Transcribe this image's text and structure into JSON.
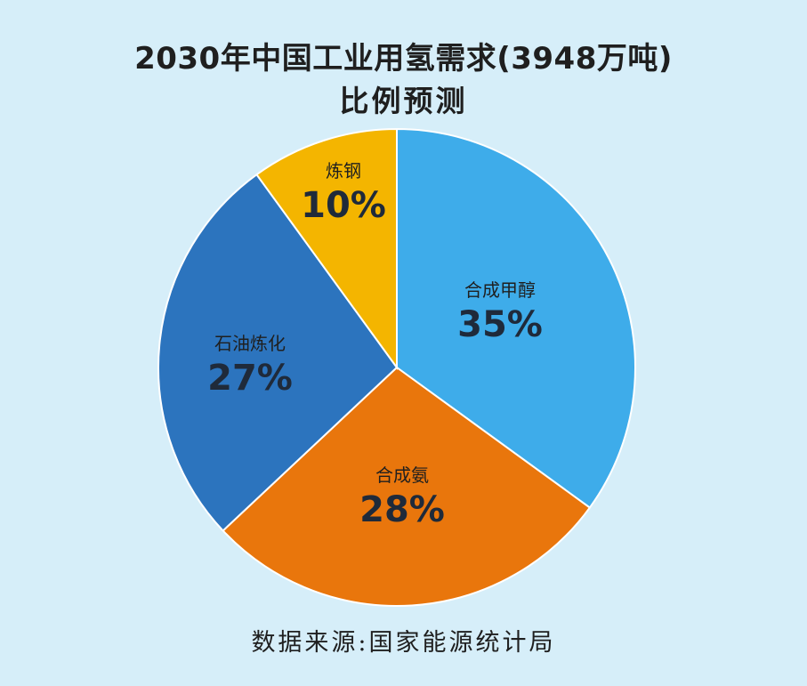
{
  "title": {
    "line1": "2030年中国工业用氢需求(3948万吨)",
    "line2": "比例预测"
  },
  "source": "数据来源:国家能源统计局",
  "chart_data": {
    "type": "pie",
    "title": "2030年中国工业用氢需求(3948万吨) 比例预测",
    "slices": [
      {
        "name": "合成甲醇",
        "value": 35,
        "label": "35%",
        "color": "#3eacea"
      },
      {
        "name": "合成氨",
        "value": 28,
        "label": "28%",
        "color": "#e9760c"
      },
      {
        "name": "石油炼化",
        "value": 27,
        "label": "27%",
        "color": "#2c74be"
      },
      {
        "name": "炼钢",
        "value": 10,
        "label": "10%",
        "color": "#f4b500"
      }
    ],
    "start": "12 o'clock",
    "direction": "clockwise",
    "legend": "none"
  }
}
